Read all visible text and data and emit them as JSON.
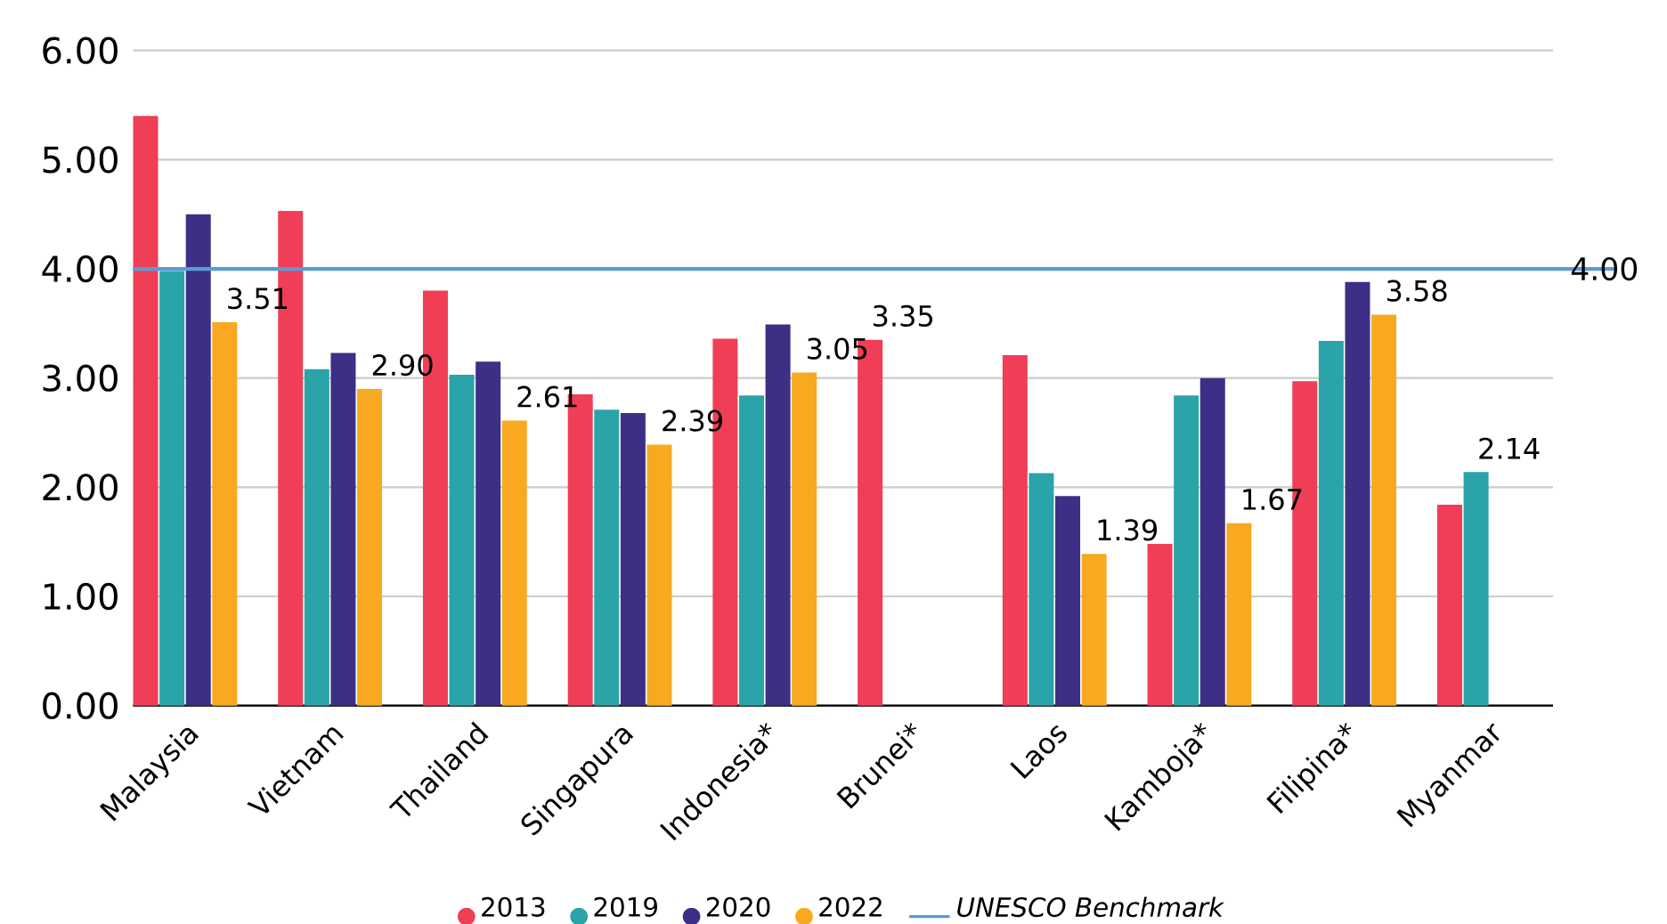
{
  "chart_data": {
    "type": "bar",
    "categories": [
      "Malaysia",
      "Vietnam",
      "Thailand",
      "Singapura",
      "Indonesia*",
      "Brunei*",
      "Laos",
      "Kamboja*",
      "Filipina*",
      "Myanmar"
    ],
    "series": [
      {
        "name": "2013",
        "color": "#ef3e55",
        "values": [
          5.4,
          4.53,
          3.8,
          2.85,
          3.36,
          3.35,
          3.21,
          1.48,
          2.97,
          1.84
        ],
        "value_labels": [
          null,
          null,
          null,
          null,
          null,
          "3.35",
          null,
          null,
          null,
          null
        ]
      },
      {
        "name": "2019",
        "color": "#2aa3a9",
        "values": [
          3.98,
          3.08,
          3.03,
          2.71,
          2.84,
          null,
          2.13,
          2.84,
          3.34,
          2.14
        ],
        "value_labels": [
          null,
          null,
          null,
          null,
          null,
          null,
          null,
          null,
          null,
          "2.14"
        ]
      },
      {
        "name": "2020",
        "color": "#3c2f85",
        "values": [
          4.5,
          3.23,
          3.15,
          2.68,
          3.49,
          null,
          1.92,
          3.0,
          3.88,
          null
        ]
      },
      {
        "name": "2022",
        "color": "#f8a91f",
        "values": [
          3.51,
          2.9,
          2.61,
          2.39,
          3.05,
          null,
          1.39,
          1.67,
          3.58,
          null
        ],
        "value_labels": [
          "3.51",
          "2.90",
          "2.61",
          "2.39",
          "3.05",
          null,
          "1.39",
          "1.67",
          "3.58",
          null
        ]
      }
    ],
    "ylim": [
      0,
      6
    ],
    "yticks": [
      {
        "value": 0,
        "label": "0.00"
      },
      {
        "value": 1,
        "label": "1.00"
      },
      {
        "value": 2,
        "label": "2.00"
      },
      {
        "value": 3,
        "label": "3.00"
      },
      {
        "value": 4,
        "label": "4.00"
      },
      {
        "value": 5,
        "label": "5.00"
      },
      {
        "value": 6,
        "label": "6.00"
      }
    ],
    "grid": "y",
    "legend": "bottom",
    "ref_lines": [
      {
        "axis": "y",
        "value": 4,
        "label": "UNESCO Benchmark",
        "color": "#5b9bd5"
      }
    ],
    "annotations": [
      {
        "text": "4.00",
        "y": 4
      }
    ]
  }
}
